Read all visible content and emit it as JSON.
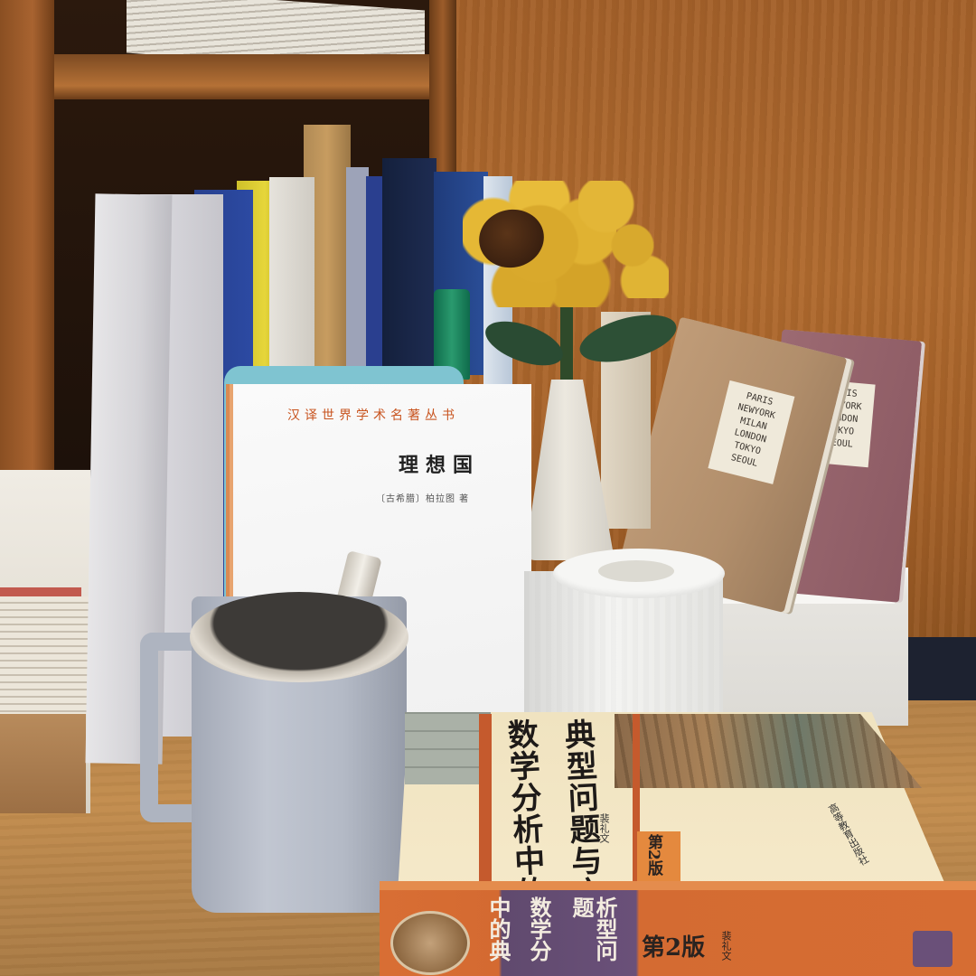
{
  "photo": {
    "republic_book": {
      "series": "汉译世界学术名著丛书",
      "title": "理想国",
      "author": "〔古希腊〕柏拉图 著"
    },
    "math_book": {
      "title_line1": "数学分析中的",
      "title_line2": "典型问题与方法",
      "edition": "第2版",
      "author": "裴礼文",
      "publisher": "高等教育出版社",
      "spine_title_col1": "中的典",
      "spine_title_col2": "数学分",
      "spine_title_col3": "析型问题",
      "spine_edition": "第2版",
      "spine_author": "裴礼文"
    },
    "notebook_tan": {
      "label_lines": [
        "PARIS",
        "NEWYORK",
        "MILAN",
        "LONDON",
        "TOKYO",
        "SEOUL"
      ]
    },
    "notebook_pink": {
      "label_lines": [
        "PARIS",
        "NEWYORK",
        "LONDON",
        "TOKYO",
        "SEOUL"
      ]
    },
    "colors": {
      "wood_wall": "#a4612a",
      "desk": "#c38d4e",
      "mug": "#b4bac6",
      "math_spine_orange": "#d46a31",
      "math_spine_purple": "#6a5079"
    }
  }
}
